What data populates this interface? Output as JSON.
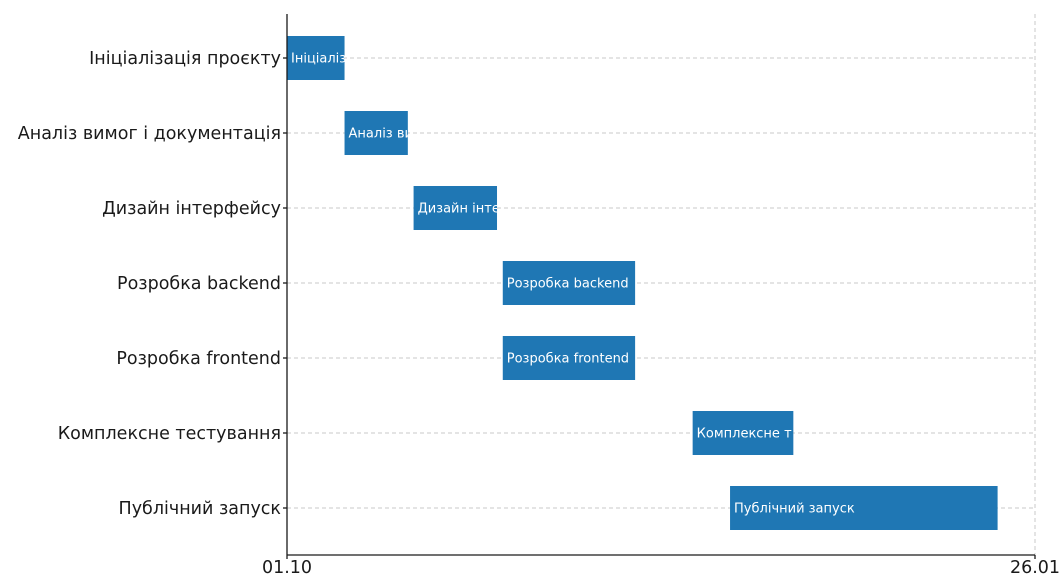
{
  "chart_data": {
    "type": "gantt",
    "tasks": [
      {
        "name": "Ініціалізація проєкту",
        "bar_label": "Ініціаліз",
        "start": 0,
        "end": 2
      },
      {
        "name": "Аналіз вимог і документація",
        "bar_label": "Аналіз ви",
        "start": 2,
        "end": 4.2
      },
      {
        "name": "Дизайн інтерфейсу",
        "bar_label": "Дизайн інте",
        "start": 4.4,
        "end": 7.3
      },
      {
        "name": "Розробка backend",
        "bar_label": "Розробка backend",
        "start": 7.5,
        "end": 12.1
      },
      {
        "name": "Розробка frontend",
        "bar_label": "Розробка frontend",
        "start": 7.5,
        "end": 12.1
      },
      {
        "name": "Комплексне тестування",
        "bar_label": "Комплексне т",
        "start": 14.1,
        "end": 17.6
      },
      {
        "name": "Публічний запуск",
        "bar_label": "Публічний запуск",
        "start": 15.4,
        "end": 24.7
      }
    ],
    "xticks": [
      {
        "value": 0,
        "label": "01.10"
      },
      {
        "value": 26,
        "label": "26.01"
      }
    ],
    "xlim": [
      0,
      26
    ],
    "grid": true,
    "bar_color": "#1f77b4"
  }
}
